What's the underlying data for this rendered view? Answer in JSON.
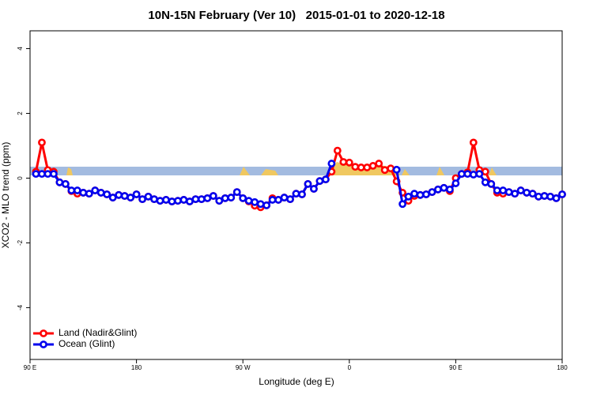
{
  "chart_data": {
    "type": "line",
    "title": "10N-15N February (Ver 10)   2015-01-01 to 2020-12-18",
    "x_label": "Longitude (deg E)",
    "y_label": "XCO2 - MLO trend (ppm)",
    "x": [
      95,
      100,
      105,
      110,
      115,
      120,
      125,
      130,
      135,
      140,
      145,
      150,
      155,
      160,
      165,
      170,
      175,
      180,
      185,
      190,
      195,
      200,
      205,
      210,
      215,
      220,
      225,
      230,
      235,
      240,
      245,
      250,
      255,
      260,
      265,
      270,
      275,
      280,
      285,
      290,
      295,
      300,
      305,
      310,
      315,
      320,
      325,
      330,
      335,
      340,
      345,
      350,
      355,
      360,
      365,
      370,
      375,
      380,
      385,
      390,
      395,
      400,
      405,
      410,
      415,
      420,
      425,
      430,
      435,
      440,
      445,
      450,
      455,
      460,
      465,
      470,
      475,
      480,
      485,
      490,
      495,
      500,
      505,
      510,
      515,
      520,
      525,
      530,
      535,
      540
    ],
    "series": [
      {
        "name": "Land (Nadir&Glint)",
        "color": "#ff0000",
        "values": [
          0.2,
          1.1,
          0.25,
          0.2,
          -0.13,
          -0.18,
          -0.4,
          -0.48,
          -0.45,
          -0.48,
          -0.38,
          -0.45,
          -0.5,
          -0.6,
          -0.52,
          -0.55,
          -0.6,
          -0.5,
          -0.65,
          -0.57,
          -0.65,
          -0.7,
          -0.67,
          -0.72,
          -0.7,
          -0.67,
          -0.72,
          -0.65,
          -0.65,
          -0.62,
          -0.55,
          -0.7,
          -0.62,
          -0.6,
          -0.43,
          -0.62,
          -0.72,
          -0.85,
          -0.9,
          -0.84,
          -0.62,
          -0.67,
          -0.6,
          -0.65,
          -0.48,
          -0.5,
          -0.18,
          -0.33,
          -0.09,
          -0.04,
          0.2,
          0.85,
          0.5,
          0.48,
          0.35,
          0.33,
          0.33,
          0.38,
          0.45,
          0.25,
          0.3,
          -0.1,
          -0.45,
          -0.7,
          -0.55,
          -0.52,
          -0.5,
          -0.43,
          -0.35,
          -0.3,
          -0.4,
          0,
          0.13,
          0.18,
          1.1,
          0.25,
          0.2,
          -0.18,
          -0.45,
          -0.48,
          -0.43,
          -0.48,
          -0.38,
          -0.45,
          -0.48,
          -0.57,
          -0.55,
          -0.57,
          -0.62,
          -0.5
        ]
      },
      {
        "name": "Ocean (Glint)",
        "color": "#0000ee",
        "values": [
          0.13,
          0.13,
          0.13,
          0.13,
          -0.13,
          -0.18,
          -0.38,
          -0.38,
          -0.45,
          -0.48,
          -0.38,
          -0.45,
          -0.5,
          -0.6,
          -0.52,
          -0.55,
          -0.6,
          -0.5,
          -0.65,
          -0.57,
          -0.65,
          -0.7,
          -0.67,
          -0.72,
          -0.7,
          -0.67,
          -0.72,
          -0.65,
          -0.65,
          -0.62,
          -0.55,
          -0.7,
          -0.62,
          -0.6,
          -0.43,
          -0.62,
          -0.7,
          -0.74,
          -0.8,
          -0.84,
          -0.67,
          -0.67,
          -0.6,
          -0.65,
          -0.48,
          -0.5,
          -0.18,
          -0.33,
          -0.09,
          -0.04,
          0.45,
          null,
          null,
          null,
          null,
          null,
          null,
          null,
          null,
          null,
          null,
          0.26,
          -0.8,
          -0.57,
          -0.48,
          -0.52,
          -0.5,
          -0.43,
          -0.35,
          -0.3,
          -0.35,
          -0.16,
          0.13,
          0.13,
          0.11,
          0.13,
          -0.13,
          -0.18,
          -0.38,
          -0.38,
          -0.43,
          -0.48,
          -0.38,
          -0.45,
          -0.48,
          -0.57,
          -0.55,
          -0.57,
          -0.62,
          -0.5
        ]
      }
    ],
    "xlim": [
      90,
      540
    ],
    "xticks": [
      {
        "value": 90,
        "label": "90 E"
      },
      180,
      {
        "value": 270,
        "label": "90 W"
      },
      {
        "value": 360,
        "label": "0"
      },
      {
        "value": 450,
        "label": "90 E"
      },
      {
        "value": 540,
        "label": "180"
      }
    ],
    "ylim": [
      -5.6,
      4.55
    ],
    "yticks": [
      -4,
      -2,
      0,
      2,
      4
    ],
    "legend": "bottom-left"
  }
}
